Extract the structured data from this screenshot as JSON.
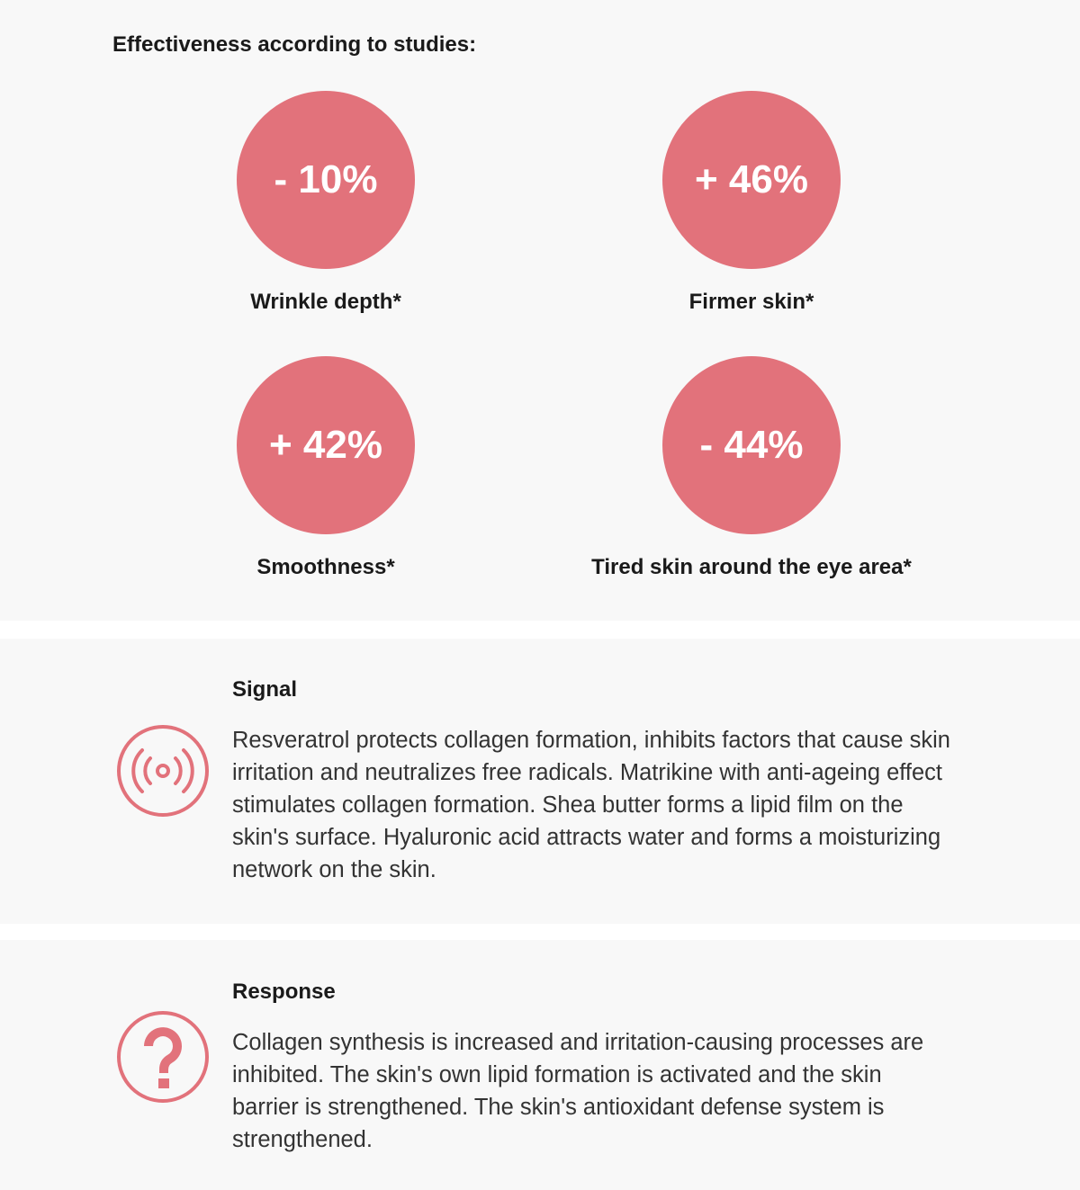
{
  "header": {
    "title": "Effectiveness according to studies:"
  },
  "stats": [
    {
      "value": "- 10%",
      "label": "Wrinkle depth*"
    },
    {
      "value": "+ 46%",
      "label": "Firmer skin*"
    },
    {
      "value": "+ 42%",
      "label": "Smoothness*"
    },
    {
      "value": "- 44%",
      "label": "Tired skin around the eye area*"
    }
  ],
  "sections": [
    {
      "title": "Signal",
      "text": "Resveratrol protects collagen formation, inhibits factors that cause skin irritation and neutralizes free radicals. Matrikine with anti-ageing effect stimulates collagen formation. Shea butter forms a lipid film on the skin's surface. Hyaluronic acid attracts water and forms a moisturizing network on the skin."
    },
    {
      "title": "Response",
      "text": "Collagen synthesis is increased and irritation-causing processes are inhibited. The skin's own lipid formation is activated and the skin barrier is strengthened. The skin's antioxidant defense system is strengthened."
    }
  ]
}
